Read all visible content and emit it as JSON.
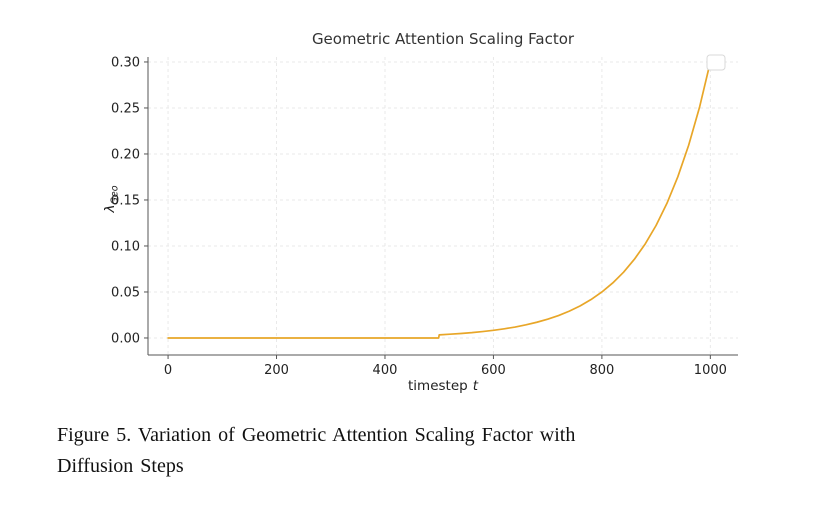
{
  "chart_data": {
    "type": "line",
    "title": "Geometric Attention Scaling Factor",
    "xlabel_prefix": "timestep",
    "xlabel_var": "t",
    "ylabel_symbol": "λ",
    "ylabel_sub": "Geo",
    "xticks": [
      0,
      200,
      400,
      600,
      800,
      1000
    ],
    "yticks": [
      "0.00",
      "0.05",
      "0.10",
      "0.15",
      "0.20",
      "0.25",
      "0.30"
    ],
    "xlim": [
      -37,
      1051
    ],
    "ylim": [
      -0.0185,
      0.3054
    ],
    "grid": true,
    "legend_position": "top-right",
    "legend_entries": [],
    "line_color": "#E8A628",
    "series": [
      {
        "name": "lambda_geo",
        "x": [
          0,
          50,
          100,
          150,
          200,
          250,
          300,
          350,
          400,
          450,
          499,
          500,
          520,
          540,
          560,
          580,
          600,
          620,
          640,
          660,
          680,
          700,
          720,
          740,
          760,
          780,
          800,
          820,
          840,
          860,
          880,
          900,
          920,
          940,
          960,
          980,
          1000
        ],
        "y": [
          0,
          0,
          0,
          0,
          0,
          0,
          0,
          0,
          0,
          0,
          0,
          0.0034,
          0.0041,
          0.0049,
          0.0058,
          0.007,
          0.0083,
          0.01,
          0.0119,
          0.0143,
          0.0171,
          0.0204,
          0.0244,
          0.0292,
          0.0349,
          0.0418,
          0.05,
          0.0598,
          0.0715,
          0.0856,
          0.1023,
          0.1224,
          0.1464,
          0.1752,
          0.2095,
          0.2506,
          0.3
        ]
      }
    ]
  },
  "caption": {
    "line1": "Figure 5. Variation of Geometric Attention Scaling Factor with",
    "line2": "Diffusion Steps"
  }
}
